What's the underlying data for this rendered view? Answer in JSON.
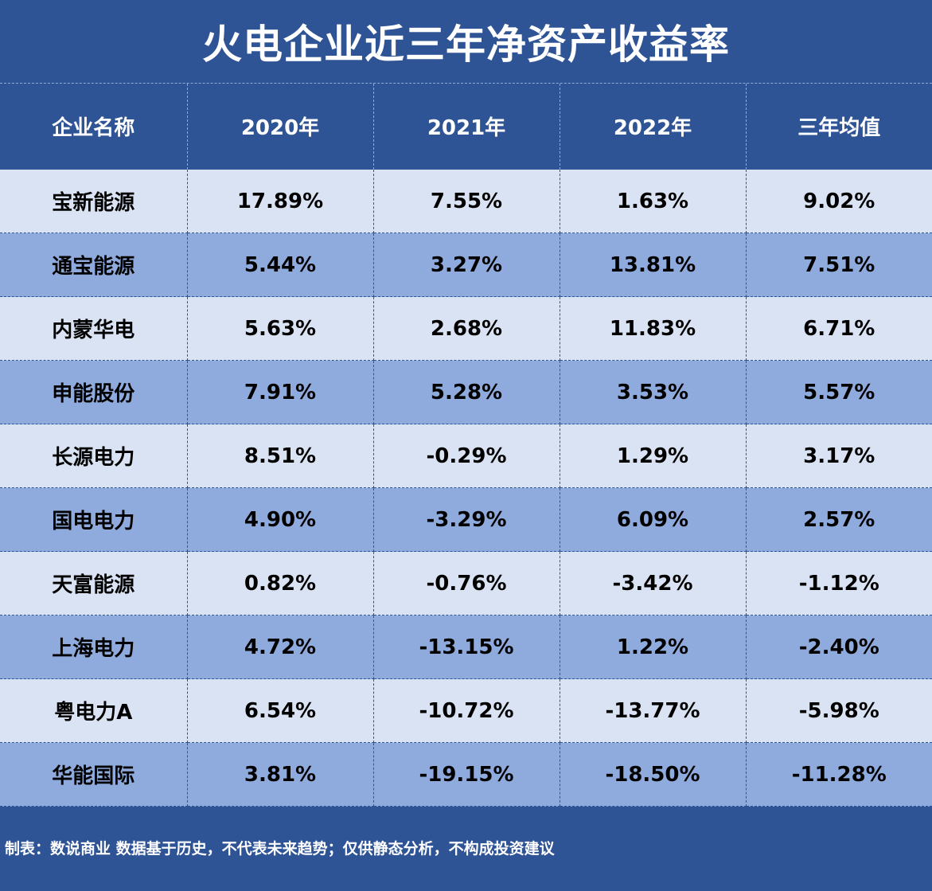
{
  "chart_data": {
    "type": "table",
    "title": "火电企业近三年净资产收益率",
    "columns": [
      "企业名称",
      "2020年",
      "2021年",
      "2022年",
      "三年均值"
    ],
    "rows": [
      [
        "宝新能源",
        "17.89%",
        "7.55%",
        "1.63%",
        "9.02%"
      ],
      [
        "通宝能源",
        "5.44%",
        "3.27%",
        "13.81%",
        "7.51%"
      ],
      [
        "内蒙华电",
        "5.63%",
        "2.68%",
        "11.83%",
        "6.71%"
      ],
      [
        "申能股份",
        "7.91%",
        "5.28%",
        "3.53%",
        "5.57%"
      ],
      [
        "长源电力",
        "8.51%",
        "-0.29%",
        "1.29%",
        "3.17%"
      ],
      [
        "国电电力",
        "4.90%",
        "-3.29%",
        "6.09%",
        "2.57%"
      ],
      [
        "天富能源",
        "0.82%",
        "-0.76%",
        "-3.42%",
        "-1.12%"
      ],
      [
        "上海电力",
        "4.72%",
        "-13.15%",
        "1.22%",
        "-2.40%"
      ],
      [
        "粤电力A",
        "6.54%",
        "-10.72%",
        "-13.77%",
        "-5.98%"
      ],
      [
        "华能国际",
        "3.81%",
        "-19.15%",
        "-18.50%",
        "-11.28%"
      ]
    ],
    "footnote": "制表：数说商业 数据基于历史，不代表未来趋势；仅供静态分析，不构成投资建议"
  },
  "colors": {
    "background": "#2f5496",
    "header_text": "#ffffff",
    "row_light": "#dae3f3",
    "row_dark": "#8faadc",
    "cell_text": "#000000"
  }
}
